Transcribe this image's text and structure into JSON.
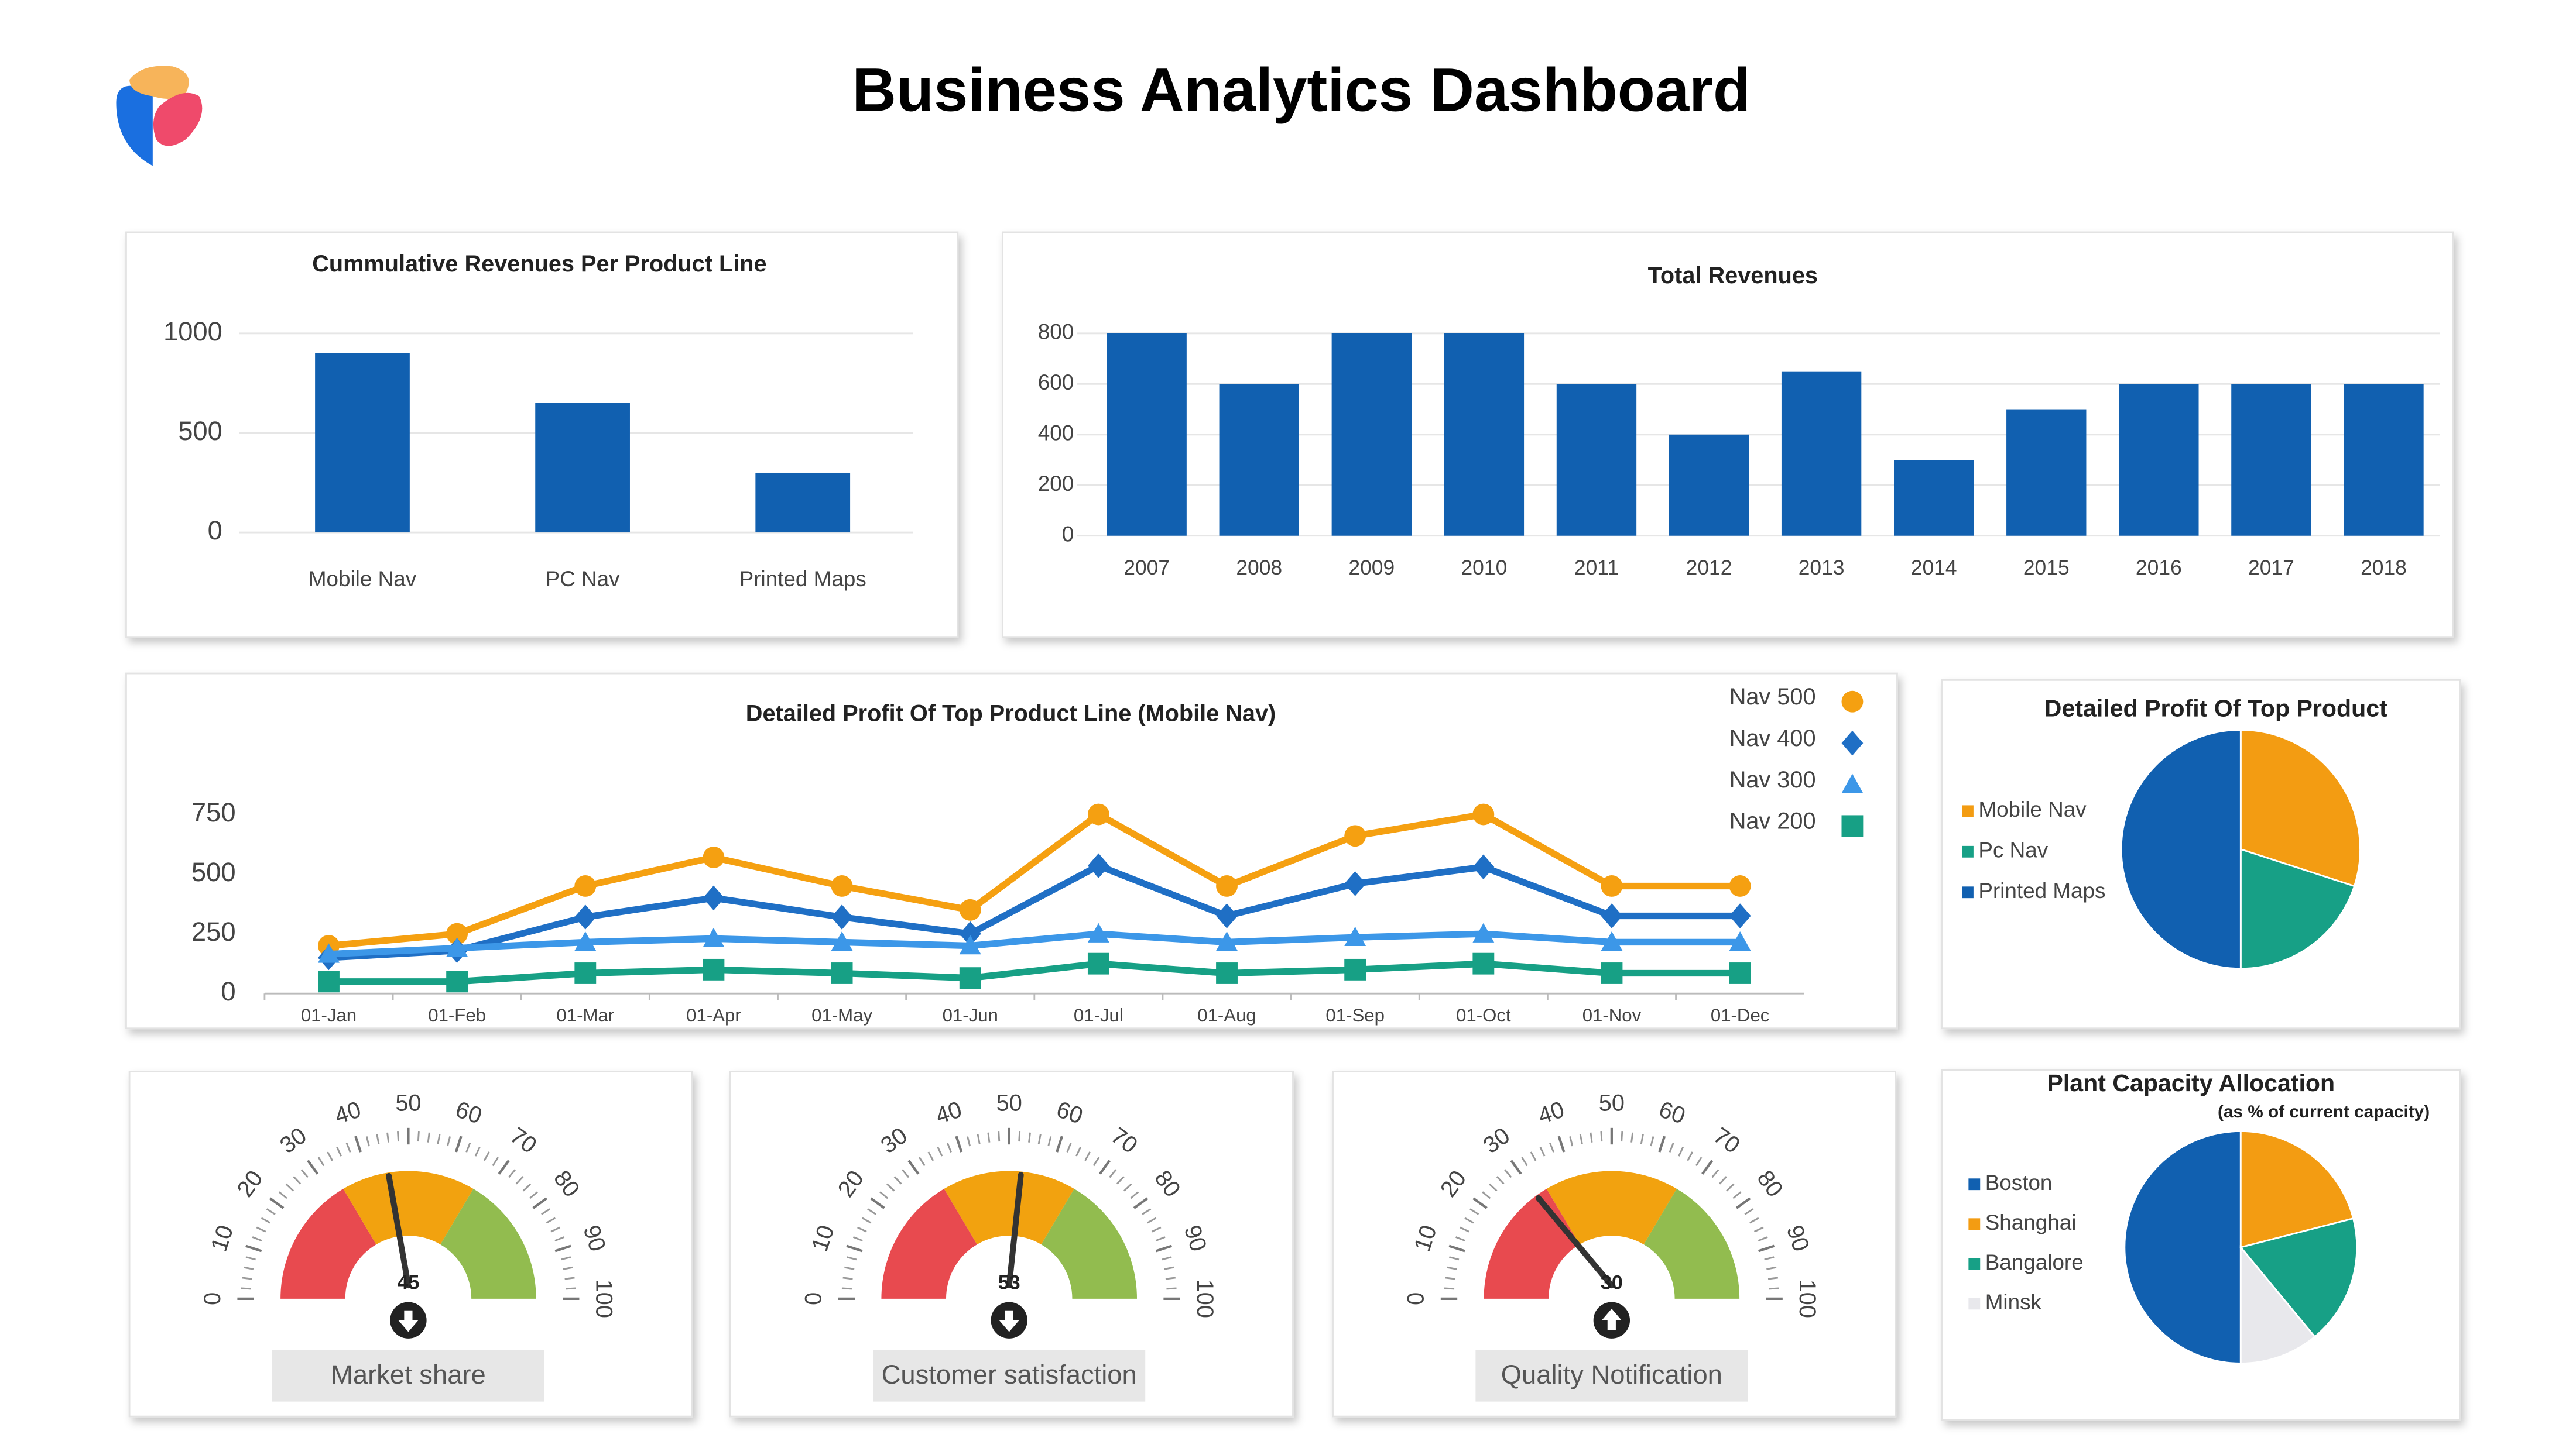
{
  "title": "Business Analytics Dashboard",
  "chart_data": [
    {
      "type": "bar",
      "title": "Cummulative Revenues Per Product Line",
      "categories": [
        "Mobile Nav",
        "PC Nav",
        "Printed Maps"
      ],
      "values": [
        900,
        650,
        300
      ],
      "color": "#1160b0",
      "ylim": [
        0,
        1000
      ],
      "yticks": [
        0,
        500,
        1000
      ],
      "grid": true
    },
    {
      "type": "bar",
      "title": "Total Revenues",
      "categories": [
        "2007",
        "2008",
        "2009",
        "2010",
        "2011",
        "2012",
        "2013",
        "2014",
        "2015",
        "2016",
        "2017",
        "2018"
      ],
      "values": [
        800,
        600,
        800,
        800,
        600,
        400,
        650,
        300,
        500,
        600,
        600,
        600
      ],
      "color": "#1160b0",
      "ylim": [
        0,
        800
      ],
      "yticks": [
        0,
        200,
        400,
        600,
        800
      ],
      "grid": true
    },
    {
      "type": "line",
      "title": "Detailed Profit Of Top Product Line (Mobile Nav)",
      "categories": [
        "01-Jan",
        "01-Feb",
        "01-Mar",
        "01-Apr",
        "01-May",
        "01-Jun",
        "01-Jul",
        "01-Aug",
        "01-Sep",
        "01-Oct",
        "01-Nov",
        "01-Dec"
      ],
      "series": [
        {
          "name": "Nav 500",
          "color": "#f5a011",
          "marker": "circle",
          "values": [
            200,
            250,
            450,
            570,
            450,
            350,
            750,
            450,
            660,
            750,
            450,
            450
          ]
        },
        {
          "name": "Nav 400",
          "color": "#1f6fc5",
          "marker": "diamond",
          "values": [
            150,
            180,
            320,
            400,
            320,
            250,
            535,
            325,
            460,
            530,
            325,
            325
          ]
        },
        {
          "name": "Nav 300",
          "color": "#3c97e8",
          "marker": "triangle",
          "values": [
            165,
            190,
            215,
            230,
            215,
            200,
            250,
            215,
            235,
            250,
            215,
            215
          ]
        },
        {
          "name": "Nav 200",
          "color": "#17a085",
          "marker": "square",
          "values": [
            50,
            50,
            85,
            100,
            85,
            65,
            125,
            85,
            100,
            125,
            85,
            85
          ]
        }
      ],
      "ylim": [
        0,
        750
      ],
      "yticks": [
        0,
        250,
        500,
        750
      ],
      "grid": false,
      "legend": "top-right"
    },
    {
      "type": "pie",
      "title": "Detailed Profit Of Top Product",
      "categories": [
        "Mobile Nav",
        "Pc Nav",
        "Printed Maps"
      ],
      "values": [
        30,
        20,
        50
      ],
      "colors": [
        "#f39c12",
        "#17a086",
        "#1160b0"
      ],
      "legend": "left"
    },
    {
      "type": "gauge",
      "label": "Market share",
      "value": 45,
      "range": [
        0,
        100
      ],
      "ticks": [
        0,
        10,
        20,
        30,
        40,
        50,
        60,
        70,
        80,
        90,
        100
      ],
      "bands": [
        33,
        67,
        100
      ],
      "band_colors": [
        "#e84a4f",
        "#f2a20f",
        "#92bc4f"
      ],
      "trend": "down"
    },
    {
      "type": "gauge",
      "label": "Customer satisfaction",
      "value": 53,
      "range": [
        0,
        100
      ],
      "ticks": [
        0,
        10,
        20,
        30,
        40,
        50,
        60,
        70,
        80,
        90,
        100
      ],
      "bands": [
        33,
        67,
        100
      ],
      "band_colors": [
        "#e84a4f",
        "#f2a20f",
        "#92bc4f"
      ],
      "trend": "down"
    },
    {
      "type": "gauge",
      "label": "Quality Notification",
      "value": 30,
      "range": [
        0,
        100
      ],
      "ticks": [
        0,
        10,
        20,
        30,
        40,
        50,
        60,
        70,
        80,
        90,
        100
      ],
      "bands": [
        33,
        67,
        100
      ],
      "band_colors": [
        "#e84a4f",
        "#f2a20f",
        "#92bc4f"
      ],
      "trend": "up"
    },
    {
      "type": "pie",
      "title": "Plant Capacity Allocation",
      "subtitle": "(as % of current capacity)",
      "categories": [
        "Boston",
        "Shanghai",
        "Bangalore",
        "Minsk"
      ],
      "values": [
        50,
        21,
        18,
        11
      ],
      "colors": [
        "#1160b0",
        "#f39c12",
        "#17a086",
        "#e8e8ec"
      ],
      "legend": "left"
    }
  ]
}
